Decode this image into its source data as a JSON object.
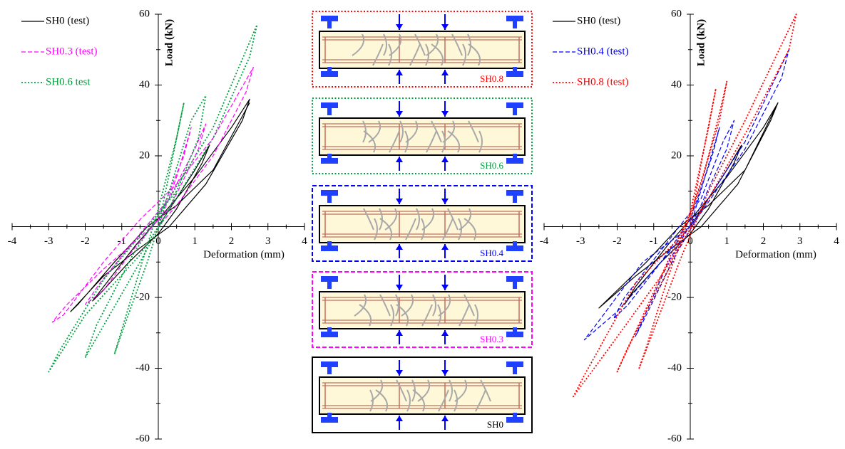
{
  "chart_data": [
    {
      "type": "line",
      "xlabel": "Deformation (mm)",
      "ylabel": "Load (kN)",
      "xlim": [
        -4,
        4
      ],
      "xticks": [
        -4,
        -3,
        -2,
        -1,
        0,
        1,
        2,
        3,
        4
      ],
      "ylim": [
        -60,
        60
      ],
      "yticks": [
        -60,
        -40,
        -20,
        20,
        40,
        60
      ],
      "legend": "upper left",
      "series": [
        {
          "name": "SH0 (test)",
          "color": "#000000",
          "dash": "solid",
          "x": [
            0,
            0.5,
            1,
            1.4,
            1.2,
            0.5,
            0,
            -0.8,
            -1.6,
            -1.8,
            -1.5,
            -0.6,
            0,
            1,
            2,
            2.5,
            2.3,
            1.3,
            0.3,
            -0.5,
            -1.5,
            -2.4,
            -2.2,
            -1.2,
            -0.3,
            0.5,
            1.5,
            2.5
          ],
          "values": [
            0,
            8,
            16,
            23,
            18,
            5,
            -2,
            -10,
            -19,
            -21,
            -17,
            -5,
            2,
            14,
            28,
            36,
            30,
            12,
            0,
            -6,
            -14,
            -24,
            -22,
            -10,
            0,
            6,
            16,
            35
          ]
        },
        {
          "name": "SH0.3 (test)",
          "color": "#ff00ff",
          "dash": "dashed",
          "x": [
            0,
            0.5,
            0.9,
            0.7,
            0,
            -0.8,
            -1.5,
            -2,
            -1.6,
            -0.5,
            0.3,
            1,
            1.3,
            1.1,
            0.3,
            -0.5,
            -1.5,
            -2.5,
            -2.9,
            -2.6,
            -1.5,
            -0.5,
            0.5,
            1.5,
            2.6,
            2.4,
            1.5,
            0.5,
            0
          ],
          "values": [
            0,
            14,
            28,
            20,
            2,
            -8,
            -18,
            -22,
            -16,
            -2,
            8,
            22,
            29,
            22,
            5,
            -3,
            -12,
            -22,
            -27,
            -25,
            -10,
            2,
            12,
            25,
            45,
            38,
            20,
            6,
            0
          ]
        },
        {
          "name": "SH0.6 test",
          "color": "#00a040",
          "dash": "dotted",
          "x": [
            0,
            0.3,
            0.7,
            0.5,
            0,
            -0.5,
            -1.2,
            -1,
            -0.3,
            0.3,
            0.9,
            1.3,
            1.1,
            0.3,
            -0.5,
            -1.5,
            -2,
            -1.7,
            -0.7,
            0.3,
            1.5,
            2.7,
            2.5,
            1.5,
            0.5,
            -0.5,
            -2,
            -3,
            -2.7,
            -1.5,
            -0.3,
            0.5
          ],
          "values": [
            0,
            15,
            35,
            25,
            5,
            -12,
            -36,
            -30,
            -10,
            10,
            30,
            37,
            25,
            5,
            -10,
            -28,
            -37,
            -28,
            -8,
            8,
            28,
            57,
            48,
            25,
            8,
            -8,
            -25,
            -41,
            -35,
            -15,
            0,
            10
          ]
        }
      ]
    },
    {
      "type": "line",
      "xlabel": "Deformation (mm)",
      "ylabel": "Load (kN)",
      "xlim": [
        -4,
        4
      ],
      "xticks": [
        -4,
        -3,
        -2,
        -1,
        0,
        1,
        2,
        3,
        4
      ],
      "ylim": [
        -60,
        60
      ],
      "yticks": [
        -60,
        -40,
        -20,
        20,
        40,
        60
      ],
      "legend": "upper left",
      "series": [
        {
          "name": "SH0 (test)",
          "color": "#000000",
          "dash": "solid",
          "x": [
            0,
            0.5,
            1,
            1.4,
            1.2,
            0.5,
            0,
            -0.8,
            -1.6,
            -1.8,
            -1.5,
            -0.6,
            0,
            1,
            2,
            2.4,
            2.2,
            1.3,
            0.3,
            -0.5,
            -1.5,
            -2.5,
            -2.3,
            -1.2,
            -0.3,
            0.5,
            1.5,
            2.4
          ],
          "values": [
            0,
            8,
            16,
            23,
            18,
            5,
            -2,
            -10,
            -19,
            -22,
            -17,
            -5,
            2,
            14,
            28,
            35,
            30,
            12,
            0,
            -6,
            -14,
            -23,
            -21,
            -10,
            0,
            6,
            16,
            35
          ]
        },
        {
          "name": "SH0.4 (test)",
          "color": "#0000ff",
          "dash": "dashed",
          "x": [
            0,
            0.4,
            0.8,
            0.6,
            0,
            -0.8,
            -1.7,
            -2.1,
            -1.8,
            -0.6,
            0.3,
            0.9,
            1.2,
            1,
            0.2,
            -0.6,
            -1.2,
            -1.5,
            -1.3,
            -0.4,
            0.5,
            1.5,
            2.7,
            2.5,
            1.5,
            0.3,
            -0.8,
            -2,
            -2.9,
            -2.6,
            -1.3,
            0
          ],
          "values": [
            0,
            14,
            28,
            20,
            2,
            -10,
            -22,
            -26,
            -20,
            -4,
            8,
            24,
            30,
            22,
            4,
            -10,
            -24,
            -31,
            -27,
            -8,
            8,
            24,
            50,
            42,
            22,
            4,
            -10,
            -24,
            -32,
            -28,
            -10,
            0
          ]
        },
        {
          "name": "SH0.8 (test)",
          "color": "#ff0000",
          "dash": "dotted",
          "x": [
            0,
            0.3,
            0.7,
            0.5,
            0,
            -0.8,
            -1.6,
            -2,
            -1.7,
            -0.6,
            0.3,
            0.8,
            1,
            0.8,
            0.1,
            -0.6,
            -1.2,
            -1.4,
            -1.1,
            -0.3,
            0.5,
            1.5,
            2.9,
            2.7,
            1.6,
            0.4,
            -0.8,
            -2.2,
            -3.2,
            -2.9,
            -1.5,
            0
          ],
          "values": [
            0,
            18,
            39,
            28,
            4,
            -14,
            -32,
            -41,
            -34,
            -12,
            12,
            32,
            41,
            30,
            6,
            -14,
            -34,
            -40,
            -32,
            -10,
            10,
            30,
            60,
            50,
            28,
            6,
            -14,
            -34,
            -48,
            -42,
            -16,
            0
          ]
        }
      ]
    }
  ],
  "panels": [
    {
      "label": "SH0.8",
      "color": "#ff0000",
      "dash": "dotted"
    },
    {
      "label": "SH0.6",
      "color": "#00a040",
      "dash": "dotted"
    },
    {
      "label": "SH0.4",
      "color": "#0000ff",
      "dash": "dashed"
    },
    {
      "label": "SH0.3",
      "color": "#ff00ff",
      "dash": "dashed"
    },
    {
      "label": "SH0",
      "color": "#000000",
      "dash": "solid"
    }
  ]
}
